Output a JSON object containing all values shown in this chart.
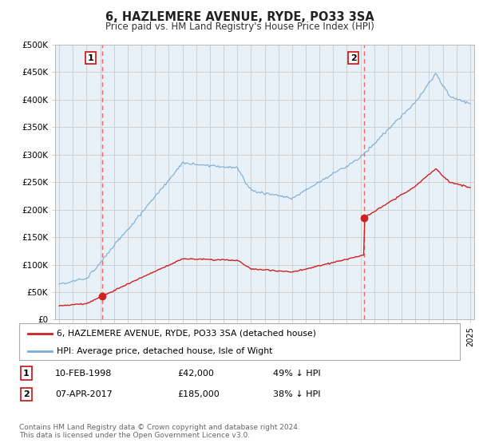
{
  "title": "6, HAZLEMERE AVENUE, RYDE, PO33 3SA",
  "subtitle": "Price paid vs. HM Land Registry's House Price Index (HPI)",
  "background_color": "#ffffff",
  "plot_bg_color": "#e8f0f8",
  "ylim": [
    0,
    500000
  ],
  "yticks": [
    0,
    50000,
    100000,
    150000,
    200000,
    250000,
    300000,
    350000,
    400000,
    450000,
    500000
  ],
  "ytick_labels": [
    "£0",
    "£50K",
    "£100K",
    "£150K",
    "£200K",
    "£250K",
    "£300K",
    "£350K",
    "£400K",
    "£450K",
    "£500K"
  ],
  "xlim_start": 1994.7,
  "xlim_end": 2025.3,
  "transaction1_x": 1998.11,
  "transaction1_y": 42000,
  "transaction2_x": 2017.27,
  "transaction2_y": 185000,
  "legend_label1": "6, HAZLEMERE AVENUE, RYDE, PO33 3SA (detached house)",
  "legend_label2": "HPI: Average price, detached house, Isle of Wight",
  "note1_date": "10-FEB-1998",
  "note1_price": "£42,000",
  "note1_hpi": "49% ↓ HPI",
  "note2_date": "07-APR-2017",
  "note2_price": "£185,000",
  "note2_hpi": "38% ↓ HPI",
  "footer": "Contains HM Land Registry data © Crown copyright and database right 2024.\nThis data is licensed under the Open Government Licence v3.0.",
  "line_color_property": "#cc2222",
  "line_color_hpi": "#7aadd4",
  "dashed_line_color": "#ee6666",
  "marker_color_property": "#cc2222"
}
